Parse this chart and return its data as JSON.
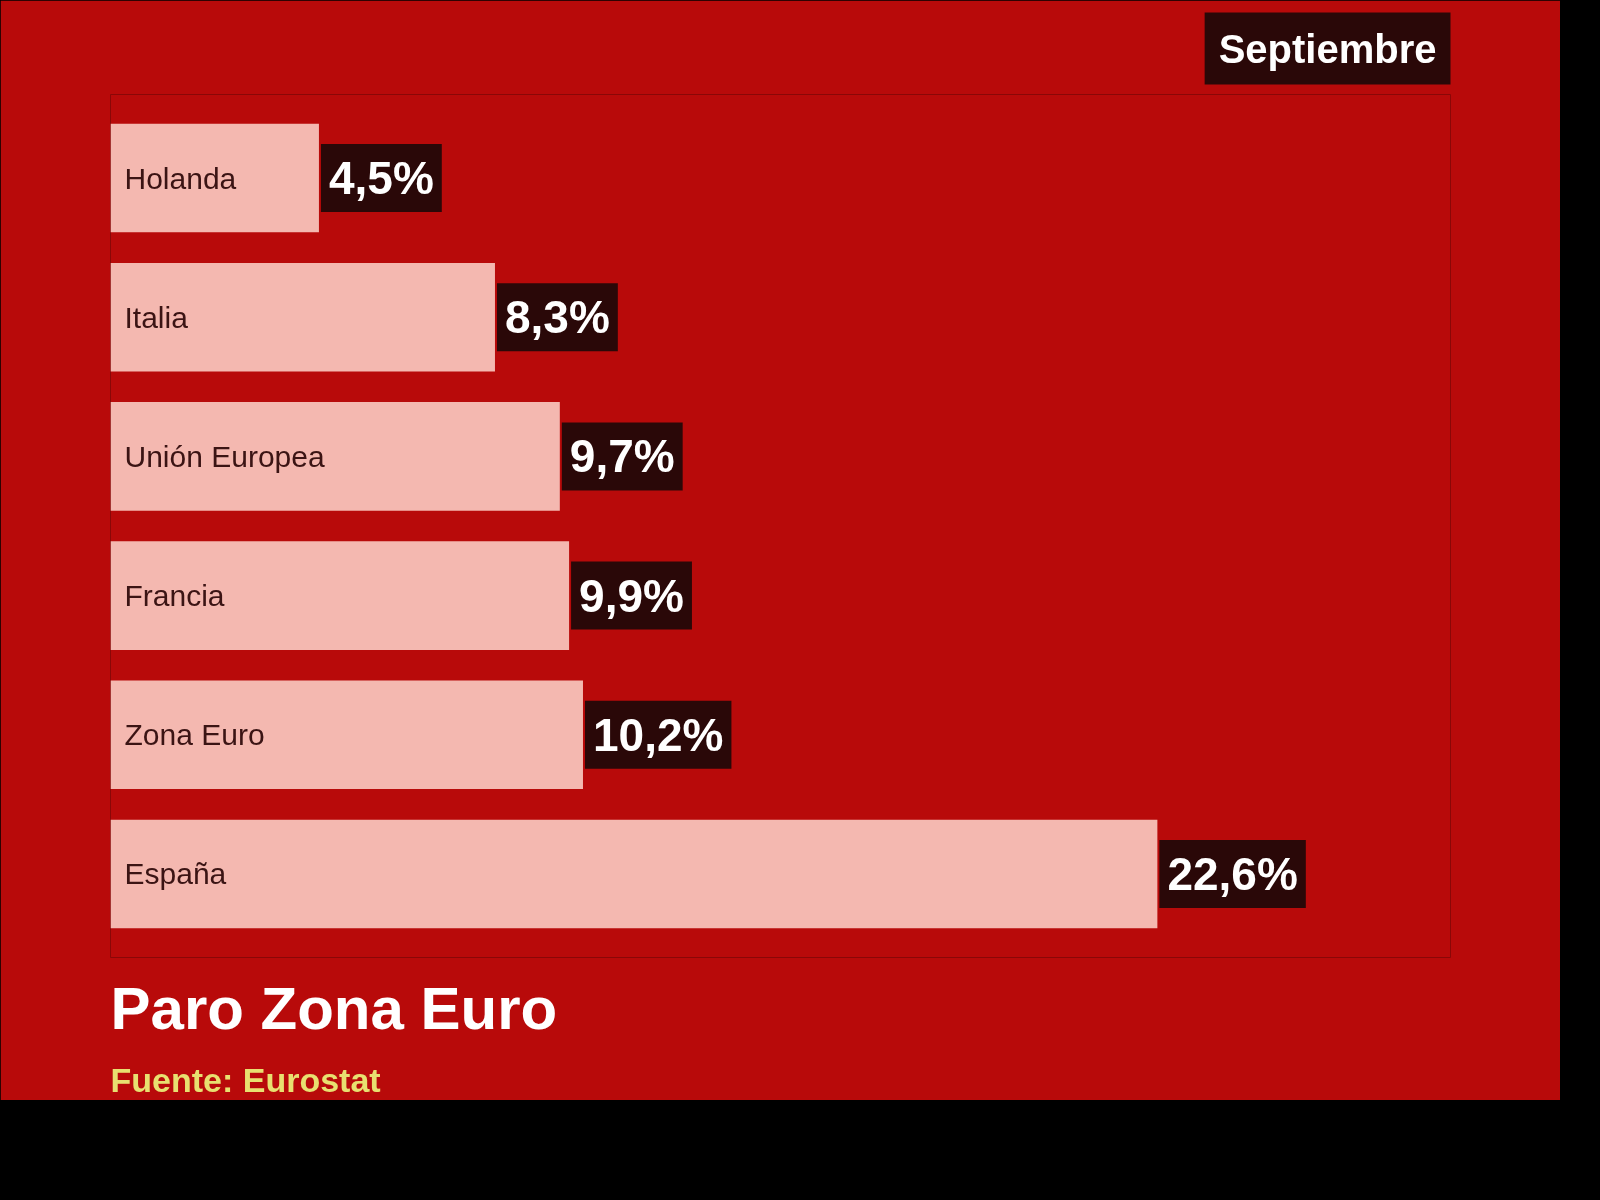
{
  "chart_data": {
    "type": "bar",
    "orientation": "horizontal",
    "title": "Paro Zona Euro",
    "subtitle": "Septiembre",
    "annotations": [
      "Fuente: Eurostat"
    ],
    "categories": [
      "Holanda",
      "Italia",
      "Unión Europea",
      "Francia",
      "Zona Euro",
      "España"
    ],
    "values": [
      4.5,
      8.3,
      9.7,
      9.9,
      10.2,
      22.6
    ],
    "color": "#f4b8b0",
    "value_labels": [
      "4,5%",
      "8,3%",
      "9,7%",
      "9,9%",
      "10,2%",
      "22,6%"
    ]
  }
}
